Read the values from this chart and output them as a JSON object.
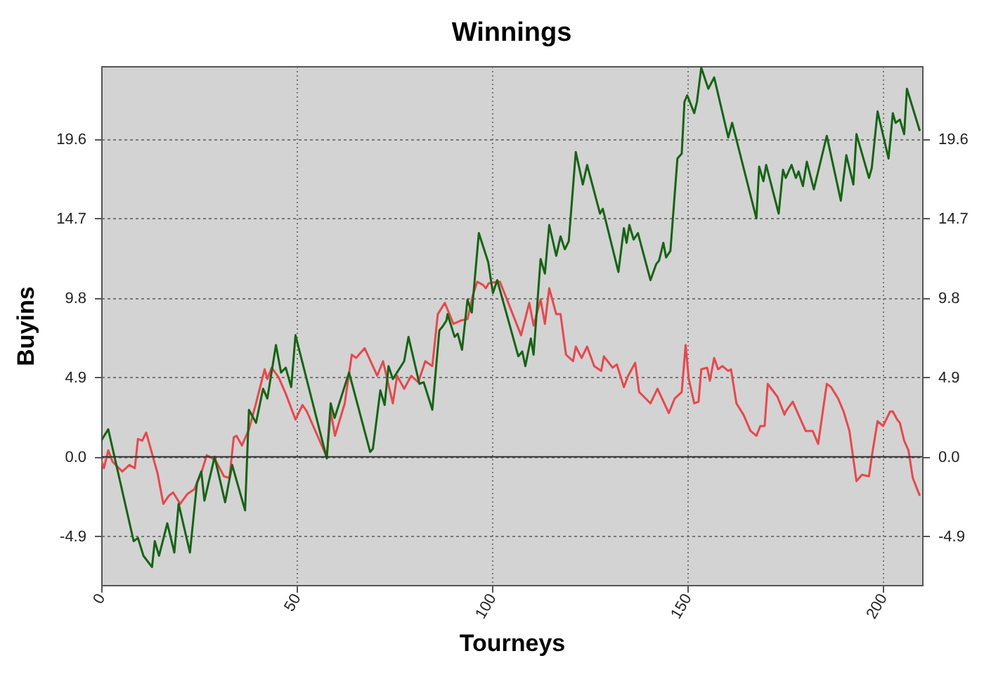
{
  "chart_data": {
    "type": "line",
    "title": "Winnings",
    "xlabel": "Tourneys",
    "ylabel": "Buyins",
    "xlim": [
      0,
      210
    ],
    "xticks": [
      0,
      50,
      100,
      150,
      200
    ],
    "ylim": [
      -7.9,
      24.1
    ],
    "yticks": [
      -4.9,
      {
        "value": 0,
        "label": "0.0"
      },
      4.9,
      9.8,
      14.7,
      19.6
    ],
    "y2lim": [
      -7.9,
      24.1
    ],
    "y2ticks": [
      -4.9,
      {
        "value": 0,
        "label": "0.0"
      },
      4.9,
      9.8,
      14.7,
      19.6
    ],
    "grid": true,
    "legend": false,
    "ref_lines": [
      {
        "axis": "y",
        "value": 0,
        "color": "#333333"
      }
    ],
    "series": [
      {
        "color": "#e8474c",
        "x": [
          0,
          0.7,
          1.8,
          2.9,
          5.4,
          7.2,
          8.6,
          9.4,
          10.5,
          11.5,
          13.7,
          14.4,
          15.9,
          17.3,
          18.4,
          20.2,
          22,
          23.8,
          25.6,
          27,
          29.2,
          31.4,
          32.8,
          33.9,
          34.6,
          36,
          37.8,
          39.6,
          41.8,
          42.5,
          43.6,
          45.4,
          47.2,
          49.7,
          51.5,
          52.6,
          57.7,
          58.7,
          59.8,
          62.3,
          64.1,
          65.2,
          67.4,
          70.6,
          72.1,
          74.6,
          75.7,
          77.5,
          79.3,
          81.1,
          82.9,
          84.7,
          86.1,
          87.9,
          90.1,
          91.9,
          93.7,
          95.1,
          96.2,
          97.7,
          98.4,
          99.1,
          101.3,
          102,
          107.4,
          109.5,
          110.6,
          112.4,
          113.5,
          114.6,
          116.4,
          117.5,
          118.9,
          120.7,
          121.4,
          122.9,
          124.3,
          126.1,
          127.9,
          128.6,
          130.8,
          131.9,
          133.7,
          134.8,
          136.6,
          137.6,
          140.5,
          142.3,
          145.2,
          146.7,
          148.5,
          149.5,
          150.3,
          151.7,
          152.8,
          153.5,
          155,
          155.7,
          156.8,
          157.8,
          158.9,
          160.4,
          161.1,
          162.5,
          164.3,
          166.1,
          167.6,
          168.6,
          169.7,
          170.5,
          173,
          174.8,
          175.1,
          176.9,
          180.2,
          182,
          183.4,
          185.6,
          186.7,
          188.5,
          189.9,
          191.4,
          193.2,
          194.6,
          196.4,
          197.1,
          198.6,
          200,
          201.8,
          202.5,
          203.6,
          204.3,
          205.4,
          206.5,
          207.6,
          209.4
        ],
        "values": [
          -0.2,
          -0.7,
          0.4,
          -0.3,
          -0.9,
          -0.5,
          -0.7,
          1.1,
          1.0,
          1.5,
          -0.4,
          -1.0,
          -2.9,
          -2.4,
          -2.2,
          -2.9,
          -2.3,
          -2.0,
          -1.0,
          0.1,
          -0.2,
          -1.2,
          -1.3,
          1.2,
          1.3,
          0.7,
          1.7,
          3.3,
          5.4,
          4.8,
          5.5,
          4.9,
          3.9,
          2.3,
          3.2,
          2.8,
          0,
          2.8,
          1.3,
          3.3,
          6.3,
          6.1,
          6.7,
          5.0,
          5.9,
          3.3,
          5.0,
          4.2,
          5.0,
          4.6,
          5.9,
          5.6,
          8.8,
          9.5,
          8.2,
          8.4,
          8.5,
          10.0,
          10.8,
          10.6,
          10.4,
          10.7,
          10.8,
          10.8,
          7.5,
          9.5,
          8.1,
          9.7,
          8.2,
          10.4,
          8.8,
          8.8,
          6.3,
          5.9,
          6.8,
          6.1,
          6.8,
          5.6,
          5.3,
          6.2,
          5.5,
          5.7,
          4.3,
          5.0,
          5.8,
          4.0,
          3.3,
          4.2,
          2.7,
          3.6,
          4.0,
          6.9,
          4.8,
          3.3,
          3.4,
          5.4,
          5.5,
          4.7,
          6.1,
          5.4,
          5.6,
          5.3,
          5.4,
          3.3,
          2.6,
          1.6,
          1.3,
          1.9,
          1.9,
          4.5,
          3.7,
          2.6,
          2.8,
          3.4,
          1.6,
          1.6,
          0.8,
          4.5,
          4.3,
          3.6,
          2.8,
          1.6,
          -1.5,
          -1.1,
          -1.2,
          0,
          2.2,
          1.9,
          2.8,
          2.8,
          2.3,
          2.1,
          1.0,
          0.4,
          -1.3,
          -2.4
        ]
      },
      {
        "color": "#146414",
        "x": [
          0,
          1.8,
          8.3,
          9.4,
          10.8,
          13,
          13.7,
          14.8,
          16.9,
          18.7,
          19.8,
          22.7,
          24.5,
          25.6,
          26.4,
          29,
          31.7,
          33.5,
          36.8,
          37.8,
          39.6,
          41.4,
          42.5,
          44.7,
          46,
          47.2,
          48.6,
          49.7,
          57.7,
          58.7,
          59.7,
          63.4,
          68.8,
          69.5,
          71.4,
          72.5,
          73.5,
          74.6,
          77.5,
          78.6,
          81.4,
          82.5,
          84.7,
          86.5,
          87.2,
          88.3,
          88.6,
          90.4,
          91.2,
          92.3,
          93.7,
          94.8,
          96.6,
          99,
          100.2,
          101.3,
          106.7,
          107.7,
          108.5,
          109.9,
          110.6,
          112.4,
          113.5,
          114.6,
          116.4,
          117.5,
          118.6,
          119.6,
          121.4,
          123.2,
          124.3,
          127.6,
          128.3,
          132.3,
          133.7,
          134.4,
          135.1,
          136.2,
          137.3,
          140.5,
          142,
          142.7,
          143.8,
          144.5,
          145.6,
          147.4,
          148.5,
          149.2,
          149.9,
          151.7,
          152.4,
          153.5,
          155.3,
          156.8,
          160.4,
          161.4,
          167.6,
          168.3,
          169.4,
          170.1,
          173.3,
          174.4,
          175.1,
          176.6,
          177.7,
          178.4,
          179.5,
          180.5,
          182.3,
          185.6,
          189.2,
          190.6,
          192.4,
          193.2,
          196.4,
          197.1,
          198.6,
          201.4,
          202.5,
          203.2,
          204.3,
          205.4,
          206.1,
          209.4
        ],
        "values": [
          1.0,
          1.7,
          -5.2,
          -5.0,
          -6.1,
          -6.8,
          -5.2,
          -6.1,
          -4.1,
          -5.9,
          -2.9,
          -5.9,
          -1.6,
          -0.9,
          -2.7,
          0,
          -2.8,
          -0.5,
          -3.3,
          2.9,
          2.1,
          4.2,
          3.6,
          6.9,
          5.2,
          5.5,
          4.3,
          7.5,
          -0.1,
          3.3,
          2.4,
          5.2,
          0.3,
          0.5,
          4.1,
          3.2,
          5.6,
          4.8,
          5.9,
          7.4,
          4.5,
          4.6,
          2.9,
          7.8,
          8.0,
          8.4,
          8.8,
          7.4,
          7.6,
          6.6,
          9.7,
          8.9,
          13.8,
          12.0,
          10.1,
          10.9,
          6.2,
          6.5,
          5.6,
          7.3,
          6.3,
          12.2,
          11.3,
          14.3,
          12.4,
          13.6,
          12.8,
          13.3,
          18.8,
          16.8,
          18.0,
          15.0,
          15.3,
          11.4,
          14.1,
          13.2,
          14.3,
          13.4,
          13.8,
          10.9,
          11.9,
          12.1,
          13.2,
          12.3,
          12.7,
          18.4,
          18.7,
          21.9,
          22.3,
          21.2,
          21.9,
          24.0,
          22.7,
          23.4,
          19.7,
          20.6,
          14.7,
          17.9,
          17.0,
          18.0,
          15.0,
          17.7,
          17.2,
          18.0,
          17.2,
          17.6,
          16.7,
          18.2,
          16.5,
          19.8,
          15.8,
          18.6,
          16.8,
          19.9,
          17.2,
          17.8,
          21.3,
          18.4,
          21.2,
          20.6,
          20.8,
          19.9,
          22.7,
          20.1
        ]
      }
    ]
  }
}
